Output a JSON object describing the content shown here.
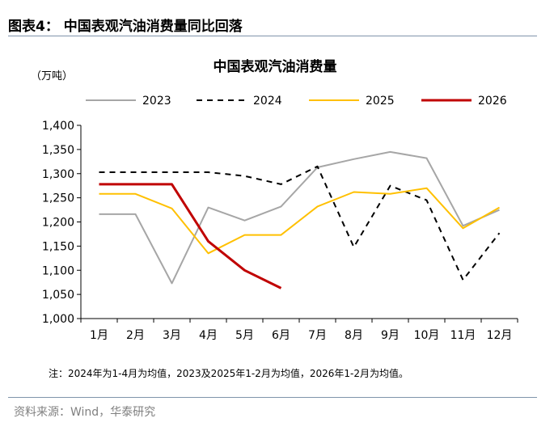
{
  "figure_label": "图表4：  中国表观汽油消费量同比回落",
  "source": "资料来源：Wind，华泰研究",
  "chart_data": {
    "type": "line",
    "title": "中国表观汽油消费量",
    "unit_label": "（万吨）",
    "categories": [
      "1月",
      "2月",
      "3月",
      "4月",
      "5月",
      "6月",
      "7月",
      "8月",
      "9月",
      "10月",
      "11月",
      "12月"
    ],
    "y_ticks": [
      "1,000",
      "1,050",
      "1,100",
      "1,150",
      "1,200",
      "1,250",
      "1,300",
      "1,350",
      "1,400"
    ],
    "ylim": [
      1000,
      1400
    ],
    "grid": false,
    "legend_position": "top",
    "series": [
      {
        "name": "2023",
        "color": "#a6a6a6",
        "dash": "solid",
        "values": [
          1216,
          1216,
          1073,
          1230,
          1203,
          1232,
          1313,
          1330,
          1345,
          1332,
          1192,
          1225
        ]
      },
      {
        "name": "2024",
        "color": "#000000",
        "dash": "dashed",
        "values": [
          1303,
          1303,
          1303,
          1303,
          1295,
          1278,
          1315,
          1148,
          1275,
          1245,
          1080,
          1177
        ]
      },
      {
        "name": "2025",
        "color": "#ffc000",
        "dash": "solid",
        "values": [
          1258,
          1258,
          1228,
          1135,
          1173,
          1173,
          1232,
          1262,
          1258,
          1270,
          1187,
          1230
        ]
      },
      {
        "name": "2026",
        "color": "#c00000",
        "dash": "solid",
        "values": [
          1278,
          1278,
          1278,
          1160,
          1100,
          1063,
          null,
          null,
          null,
          null,
          null,
          null
        ]
      }
    ],
    "note": "注：2024年为1-4月为均值，2023及2025年1-2月为均值，2026年1-2月为均值。"
  }
}
